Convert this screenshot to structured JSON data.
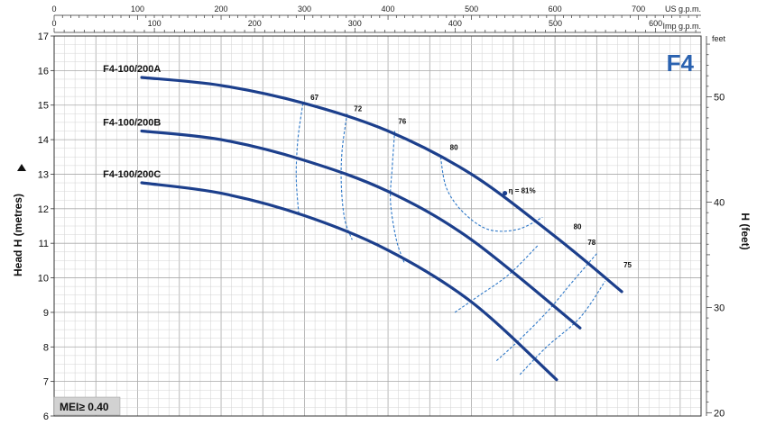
{
  "chart_data": {
    "type": "line",
    "model": "F4",
    "mei_label": "MEI≥ 0.40",
    "ylabel": "Head H  (metres)",
    "ylabel_right": "H (feet)",
    "ylim": [
      6,
      17
    ],
    "yticks": [
      6,
      7,
      8,
      9,
      10,
      11,
      12,
      13,
      14,
      15,
      16,
      17
    ],
    "xlim_us_gpm": [
      0,
      775
    ],
    "us_gpm_unit": "US g.p.m.",
    "us_gpm_ticks": [
      0,
      100,
      200,
      300,
      400,
      500,
      600,
      700
    ],
    "imp_gpm_unit": "Imp g.p.m.",
    "imp_gpm_ticks": [
      0,
      100,
      200,
      300,
      400,
      500,
      600
    ],
    "feet_unit": "feet",
    "feet_ticks": [
      20,
      30,
      40,
      50
    ],
    "grid": true,
    "series": [
      {
        "name": "F4-100/200A",
        "x": [
          105,
          200,
          300,
          400,
          500,
          600,
          680
        ],
        "y": [
          15.8,
          15.57,
          15.05,
          14.25,
          13.0,
          11.2,
          9.6
        ]
      },
      {
        "name": "F4-100/200B",
        "x": [
          105,
          200,
          300,
          400,
          500,
          630
        ],
        "y": [
          14.25,
          14.0,
          13.4,
          12.5,
          11.1,
          8.55
        ]
      },
      {
        "name": "F4-100/200C",
        "x": [
          105,
          200,
          300,
          400,
          500,
          602
        ],
        "y": [
          12.75,
          12.45,
          11.8,
          10.8,
          9.3,
          7.05
        ]
      }
    ],
    "efficiency_labels": [
      {
        "label": "67",
        "x": 305,
        "y": 15.05
      },
      {
        "label": "72",
        "x": 357,
        "y": 14.72
      },
      {
        "label": "76",
        "x": 410,
        "y": 14.35
      },
      {
        "label": "80",
        "x": 472,
        "y": 13.6
      },
      {
        "label": "η = 81%",
        "x": 540,
        "y": 12.45
      },
      {
        "label": "80",
        "x": 620,
        "y": 11.3
      },
      {
        "label": "78",
        "x": 637,
        "y": 10.85
      },
      {
        "label": "75",
        "x": 680,
        "y": 10.2
      }
    ],
    "efficiency_curves": [
      {
        "name": "67",
        "x": [
          298,
          292,
          290,
          293
        ],
        "y": [
          15.05,
          14.0,
          12.9,
          11.85
        ]
      },
      {
        "name": "72",
        "x": [
          351,
          345,
          344,
          348,
          357
        ],
        "y": [
          14.75,
          13.7,
          12.7,
          11.7,
          11.1
        ]
      },
      {
        "name": "76",
        "x": [
          408,
          405,
          403,
          410,
          420
        ],
        "y": [
          14.25,
          13.2,
          12.2,
          11.1,
          10.4
        ]
      },
      {
        "name": "80a",
        "x": [
          463,
          470,
          490,
          520,
          555,
          585
        ],
        "y": [
          13.5,
          12.6,
          11.9,
          11.4,
          11.4,
          11.75
        ]
      },
      {
        "name": "80b",
        "x": [
          480,
          510,
          545,
          580
        ],
        "y": [
          9.0,
          9.5,
          10.1,
          10.95
        ]
      },
      {
        "name": "78",
        "x": [
          530,
          555,
          590,
          618,
          650
        ],
        "y": [
          7.6,
          8.15,
          9.0,
          9.8,
          10.7
        ]
      },
      {
        "name": "75",
        "x": [
          558,
          590,
          630,
          660
        ],
        "y": [
          7.2,
          8.0,
          8.85,
          9.9
        ]
      }
    ],
    "best_efficiency_point": {
      "x": 540,
      "y": 12.45
    }
  }
}
